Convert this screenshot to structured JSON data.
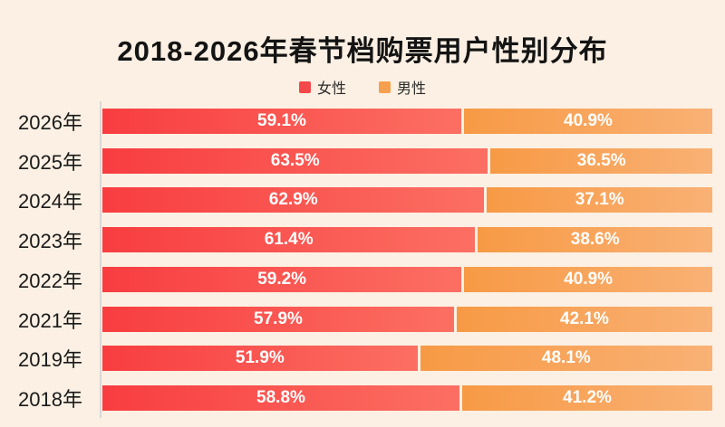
{
  "title": "2018-2026年春节档购票用户性别分布",
  "legend": [
    {
      "key": "female",
      "label": "女性",
      "color": "#f4494b"
    },
    {
      "key": "male",
      "label": "男性",
      "color": "#f6a04f"
    }
  ],
  "chart_data": {
    "type": "bar",
    "orientation": "horizontal",
    "stacked": true,
    "unit": "%",
    "xlim": [
      0,
      100
    ],
    "grid": false,
    "legend_position": "top",
    "title": "2018-2026年春节档购票用户性别分布",
    "categories": [
      "2026年",
      "2025年",
      "2024年",
      "2023年",
      "2022年",
      "2021年",
      "2019年",
      "2018年"
    ],
    "series": [
      {
        "key": "female",
        "name": "女性",
        "values": [
          59.1,
          63.5,
          62.9,
          61.4,
          59.2,
          57.9,
          51.9,
          58.8
        ],
        "labels": [
          "59.1%",
          "63.5%",
          "62.9%",
          "61.4%",
          "59.2%",
          "57.9%",
          "51.9%",
          "58.8%"
        ],
        "gradient": [
          "#f83d40",
          "#fc6f63"
        ]
      },
      {
        "key": "male",
        "name": "男性",
        "values": [
          40.9,
          36.5,
          37.1,
          38.6,
          40.9,
          42.1,
          48.1,
          41.2
        ],
        "labels": [
          "40.9%",
          "36.5%",
          "37.1%",
          "38.6%",
          "40.9%",
          "42.1%",
          "48.1%",
          "41.2%"
        ],
        "gradient": [
          "#f79a45",
          "#f9b175"
        ]
      }
    ]
  },
  "colors": {
    "background": "#fbf0e3",
    "axis_line": "#d8d8d8",
    "title_text": "#141414",
    "category_text": "#1a1a1a",
    "bar_label_text": "#ffffff"
  }
}
